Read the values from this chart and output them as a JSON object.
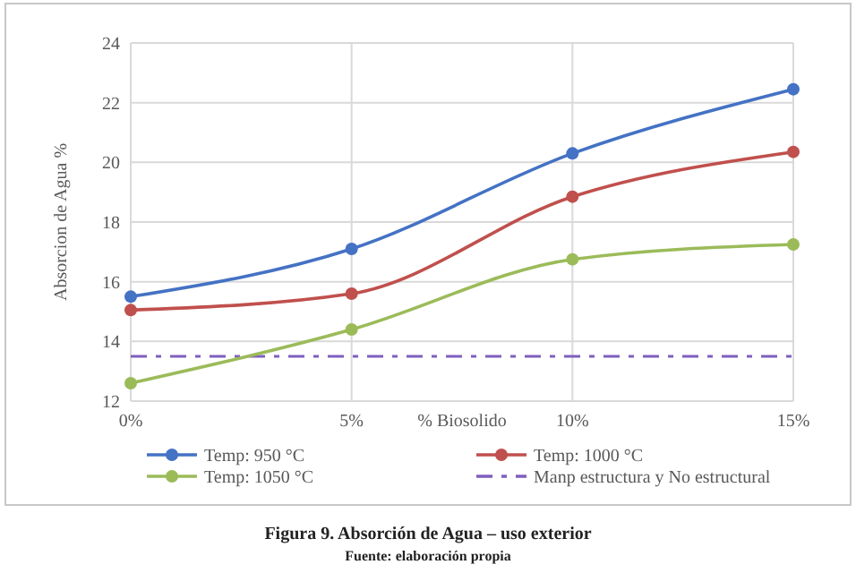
{
  "chart_data": {
    "type": "line",
    "title": "Figura 9. Absorción de Agua – uso exterior",
    "annotations": [
      "Fuente: elaboración propia"
    ],
    "xlabel": "% Biosolido",
    "ylabel": "Absorcion de Agua %",
    "categories": [
      "0%",
      "5%",
      "10%",
      "15%"
    ],
    "series": [
      {
        "name": "Temp: 950 °C",
        "color": "#4472c4",
        "values": [
          15.5,
          17.1,
          20.3,
          22.45
        ]
      },
      {
        "name": "Temp: 1000 °C",
        "color": "#c0504d",
        "values": [
          15.05,
          15.6,
          18.85,
          20.35
        ]
      },
      {
        "name": "Temp: 1050 °C",
        "color": "#9bbb59",
        "values": [
          12.6,
          14.4,
          16.75,
          17.25
        ]
      }
    ],
    "ref_lines": [
      {
        "axis": "y",
        "value": 13.5,
        "label": "Manp estructura y No estructural",
        "color": "#7f5fbf",
        "line_style": "dashed"
      }
    ],
    "ylim": [
      12,
      24
    ],
    "yticks": [
      12,
      14,
      16,
      18,
      20,
      22,
      24
    ],
    "grid": true,
    "legend": "bottom",
    "marker": "circle",
    "line_style": "solid"
  }
}
